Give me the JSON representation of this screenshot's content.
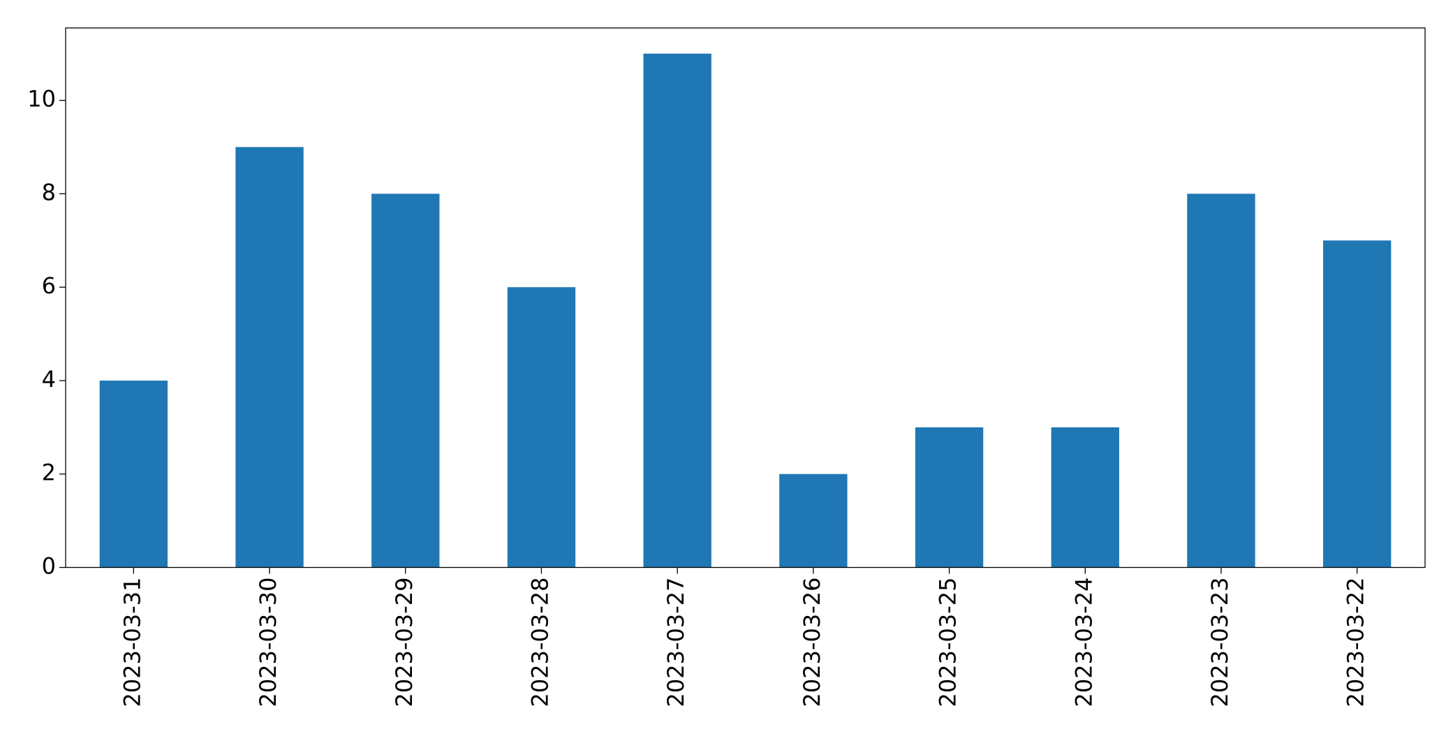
{
  "chart_data": {
    "type": "bar",
    "categories": [
      "2023-03-31",
      "2023-03-30",
      "2023-03-29",
      "2023-03-28",
      "2023-03-27",
      "2023-03-26",
      "2023-03-25",
      "2023-03-24",
      "2023-03-23",
      "2023-03-22"
    ],
    "values": [
      4,
      9,
      8,
      6,
      11,
      2,
      3,
      3,
      8,
      7
    ],
    "color": "#1f77b4",
    "ylim": [
      0,
      11.55
    ],
    "yticks": [
      0,
      2,
      4,
      6,
      8,
      10
    ],
    "grid": false
  }
}
